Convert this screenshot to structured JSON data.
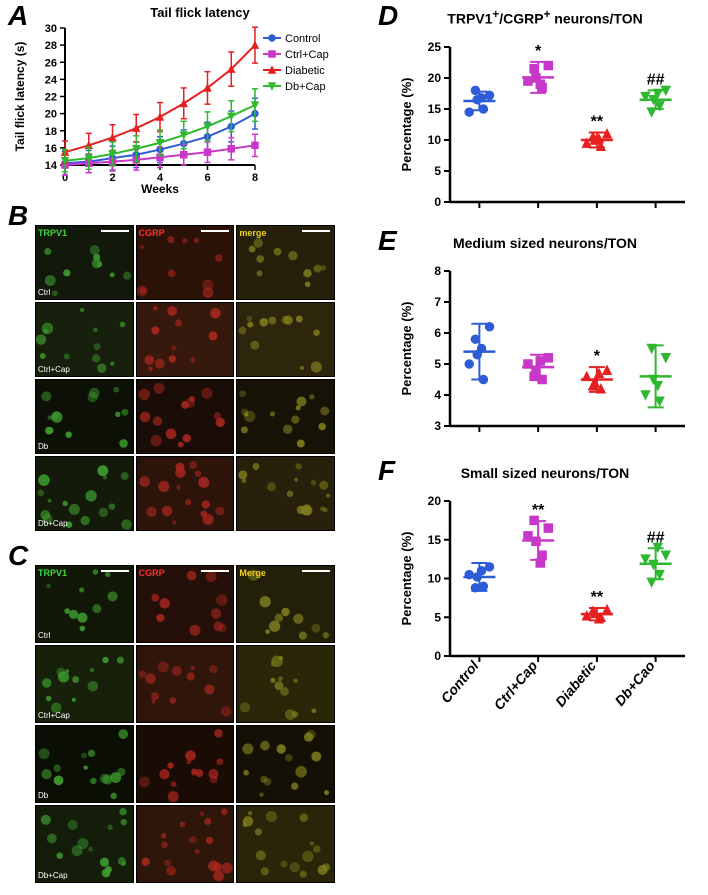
{
  "colors": {
    "control": "#2e5cd8",
    "ctrl_cap": "#c838c8",
    "diabetic": "#e62020",
    "db_cap": "#2fb82f",
    "axis": "#000000",
    "bg": "#ffffff"
  },
  "panelA": {
    "label": "A",
    "title": "Tail flick latency",
    "xlabel": "Weeks",
    "ylabel": "Tail flick latency (s)",
    "xlim": [
      0,
      8
    ],
    "ylim": [
      14,
      30
    ],
    "xticks": [
      0,
      2,
      4,
      6,
      8
    ],
    "yticks": [
      14,
      16,
      18,
      20,
      22,
      24,
      26,
      28,
      30
    ],
    "legend": [
      {
        "label": "Control",
        "color": "#2e5cd8",
        "marker": "circle"
      },
      {
        "label": "Ctrl+Cap",
        "color": "#c838c8",
        "marker": "square"
      },
      {
        "label": "Diabetic",
        "color": "#e62020",
        "marker": "triangle"
      },
      {
        "label": "Db+Cap",
        "color": "#2fb82f",
        "marker": "invtriangle"
      }
    ],
    "series": {
      "Control": {
        "x": [
          0,
          1,
          2,
          3,
          4,
          5,
          6,
          7,
          8
        ],
        "y": [
          14.2,
          14.4,
          14.8,
          15.2,
          15.8,
          16.5,
          17.3,
          18.5,
          20.0
        ],
        "err": [
          1.4,
          1.3,
          1.4,
          1.5,
          1.5,
          1.6,
          1.7,
          1.8,
          1.8
        ],
        "color": "#2e5cd8"
      },
      "Ctrl+Cap": {
        "x": [
          0,
          1,
          2,
          3,
          4,
          5,
          6,
          7,
          8
        ],
        "y": [
          14.0,
          14.2,
          14.4,
          14.6,
          14.9,
          15.2,
          15.5,
          15.9,
          16.3
        ],
        "err": [
          1.2,
          1.1,
          1.1,
          1.2,
          1.2,
          1.2,
          1.2,
          1.3,
          1.3
        ],
        "color": "#c838c8"
      },
      "Diabetic": {
        "x": [
          0,
          1,
          2,
          3,
          4,
          5,
          6,
          7,
          8
        ],
        "y": [
          15.5,
          16.3,
          17.2,
          18.3,
          19.6,
          21.2,
          23.0,
          25.2,
          28.0
        ],
        "err": [
          1.3,
          1.4,
          1.5,
          1.6,
          1.7,
          1.8,
          1.9,
          2.0,
          2.1
        ],
        "color": "#e62020"
      },
      "Db+Cap": {
        "x": [
          0,
          1,
          2,
          3,
          4,
          5,
          6,
          7,
          8
        ],
        "y": [
          14.5,
          14.8,
          15.3,
          15.9,
          16.6,
          17.5,
          18.5,
          19.7,
          21.0
        ],
        "err": [
          1.3,
          1.3,
          1.4,
          1.5,
          1.5,
          1.6,
          1.7,
          1.8,
          1.9
        ],
        "color": "#2fb82f"
      }
    }
  },
  "panelB": {
    "label": "B",
    "headers": [
      {
        "text": "TRPV1",
        "color": "#3fd63f"
      },
      {
        "text": "CGRP",
        "color": "#ff3030"
      },
      {
        "text": "merge",
        "color": "#f0d020"
      }
    ],
    "rows": [
      "Ctrl",
      "Ctrl+Cap",
      "Db",
      "Db+Cap"
    ],
    "cell_bg": [
      [
        "#12180a",
        "#2a1208",
        "#26200a"
      ],
      [
        "#16200c",
        "#36180c",
        "#2e260c"
      ],
      [
        "#0c1006",
        "#1a0c06",
        "#161206"
      ],
      [
        "#141a0a",
        "#2c140a",
        "#28200a"
      ]
    ]
  },
  "panelC": {
    "label": "C",
    "headers": [
      {
        "text": "TRPV1",
        "color": "#3fd63f"
      },
      {
        "text": "CGRP",
        "color": "#ff3030"
      },
      {
        "text": "Merge",
        "color": "#f0d020"
      }
    ],
    "rows": [
      "Ctrl",
      "Ctrl+Cap",
      "Db",
      "Db+Cap"
    ],
    "cell_bg": [
      [
        "#121808",
        "#241008",
        "#222008"
      ],
      [
        "#16200a",
        "#30160a",
        "#2a2608"
      ],
      [
        "#0a0e05",
        "#1a0c05",
        "#141005"
      ],
      [
        "#141c0a",
        "#2e160a",
        "#2a2408"
      ]
    ]
  },
  "scatter_common": {
    "groups": [
      "Control",
      "Ctrl+Cap",
      "Diabetic",
      "Db+Cao"
    ],
    "group_colors": [
      "#2e5cd8",
      "#c838c8",
      "#e62020",
      "#2fb82f"
    ],
    "markers": [
      "circle",
      "square",
      "triangle",
      "invtriangle"
    ],
    "ylabel": "Percentage (%)"
  },
  "panelD": {
    "label": "D",
    "title_parts": [
      "TRPV1",
      "+",
      "/CGRP",
      "+",
      " neurons/TON"
    ],
    "ylim": [
      0,
      25
    ],
    "yticks": [
      0,
      5,
      10,
      15,
      20,
      25
    ],
    "data": {
      "Control": {
        "points": [
          16.5,
          15.0,
          17.2,
          14.5,
          18.0,
          16.8
        ],
        "mean": 16.3,
        "sd": 1.5,
        "sig": ""
      },
      "Ctrl+Cap": {
        "points": [
          20.0,
          18.5,
          22.0,
          19.5,
          21.5,
          19.0
        ],
        "mean": 20.1,
        "sd": 2.5,
        "sig": "*"
      },
      "Diabetic": {
        "points": [
          10.0,
          9.0,
          11.0,
          9.5,
          10.5,
          10.2
        ],
        "mean": 10.0,
        "sd": 1.2,
        "sig": "**"
      },
      "Db+Cap": {
        "points": [
          16.5,
          15.5,
          18.0,
          17.0,
          14.5,
          17.5
        ],
        "mean": 16.5,
        "sd": 1.5,
        "sig": "##"
      }
    }
  },
  "panelE": {
    "label": "E",
    "title": "Medium sized neurons/TON",
    "ylim": [
      3,
      8
    ],
    "yticks": [
      3,
      4,
      5,
      6,
      7,
      8
    ],
    "data": {
      "Control": {
        "points": [
          5.3,
          4.5,
          6.2,
          5.0,
          5.8,
          5.5
        ],
        "mean": 5.4,
        "sd": 0.9,
        "sig": ""
      },
      "Ctrl+Cap": {
        "points": [
          4.8,
          4.5,
          5.2,
          5.0,
          4.6,
          5.1
        ],
        "mean": 4.9,
        "sd": 0.4,
        "sig": ""
      },
      "Diabetic": {
        "points": [
          4.4,
          4.2,
          4.8,
          4.6,
          4.3,
          4.7
        ],
        "mean": 4.5,
        "sd": 0.4,
        "sig": "*"
      },
      "Db+Cap": {
        "points": [
          4.5,
          3.8,
          5.2,
          4.0,
          5.5,
          4.3
        ],
        "mean": 4.6,
        "sd": 1.0,
        "sig": ""
      }
    }
  },
  "panelF": {
    "label": "F",
    "title": "Small sized neurons/TON",
    "ylim": [
      0,
      20
    ],
    "yticks": [
      0,
      5,
      10,
      15,
      20
    ],
    "data": {
      "Control": {
        "points": [
          10.2,
          9.0,
          11.5,
          10.5,
          8.8,
          11.0
        ],
        "mean": 10.2,
        "sd": 1.8,
        "sig": ""
      },
      "Ctrl+Cap": {
        "points": [
          14.8,
          13.0,
          16.5,
          15.5,
          17.5,
          12.0
        ],
        "mean": 14.9,
        "sd": 2.5,
        "sig": "**"
      },
      "Diabetic": {
        "points": [
          5.5,
          5.0,
          6.0,
          5.2,
          5.8,
          4.8
        ],
        "mean": 5.4,
        "sd": 0.8,
        "sig": "**"
      },
      "Db+Cap": {
        "points": [
          11.8,
          10.5,
          13.0,
          12.5,
          9.5,
          14.0
        ],
        "mean": 11.9,
        "sd": 2.0,
        "sig": "##"
      }
    }
  }
}
